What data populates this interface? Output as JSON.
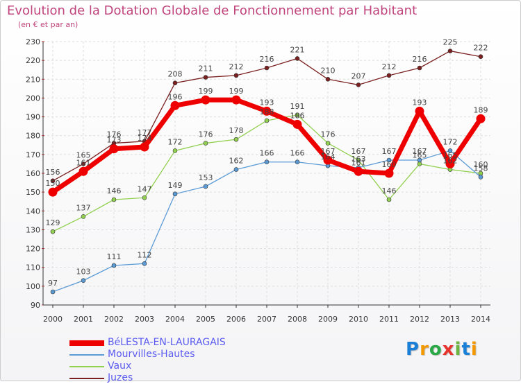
{
  "title": "Evolution de la Dotation Globale de Fonctionnement par Habitant",
  "subtitle": "(en € et par an)",
  "logo": {
    "text": "Proxiti",
    "colors": [
      "#1a7fd6",
      "#f39800",
      "#2aa845",
      "#e8322c",
      "#6cb33f",
      "#1a7fd6",
      "#f39800"
    ]
  },
  "chart_data": {
    "type": "line",
    "title": "Evolution de la Dotation Globale de Fonctionnement par Habitant",
    "subtitle": "(en € et par an)",
    "x": [
      "2000",
      "2001",
      "2002",
      "2003",
      "2004",
      "2005",
      "2006",
      "2007",
      "2008",
      "2009",
      "2010",
      "2011",
      "2012",
      "2013",
      "2014"
    ],
    "ylim": [
      90,
      230
    ],
    "yticks": [
      90,
      100,
      110,
      120,
      130,
      140,
      150,
      160,
      170,
      180,
      190,
      200,
      210,
      220,
      230
    ],
    "grid": true,
    "legend_position": "bottom-left",
    "series": [
      {
        "name": "BéLESTA-EN-LAURAGAIS",
        "color": "#ee0000",
        "values": [
          150,
          161,
          173,
          174,
          196,
          199,
          199,
          193,
          186,
          167,
          161,
          160,
          193,
          165,
          189
        ]
      },
      {
        "name": "Mourvilles-Hautes",
        "color": "#5b9bd5",
        "values": [
          97,
          103,
          111,
          112,
          149,
          153,
          162,
          166,
          166,
          164,
          163,
          167,
          167,
          172,
          158
        ]
      },
      {
        "name": "Vaux",
        "color": "#92d050",
        "values": [
          129,
          137,
          146,
          147,
          172,
          176,
          178,
          188,
          191,
          176,
          167,
          146,
          165,
          162,
          160
        ]
      },
      {
        "name": "Juzes",
        "color": "#7b2020",
        "values": [
          156,
          165,
          176,
          177,
          208,
          211,
          212,
          216,
          221,
          210,
          207,
          212,
          216,
          225,
          222
        ]
      }
    ]
  }
}
